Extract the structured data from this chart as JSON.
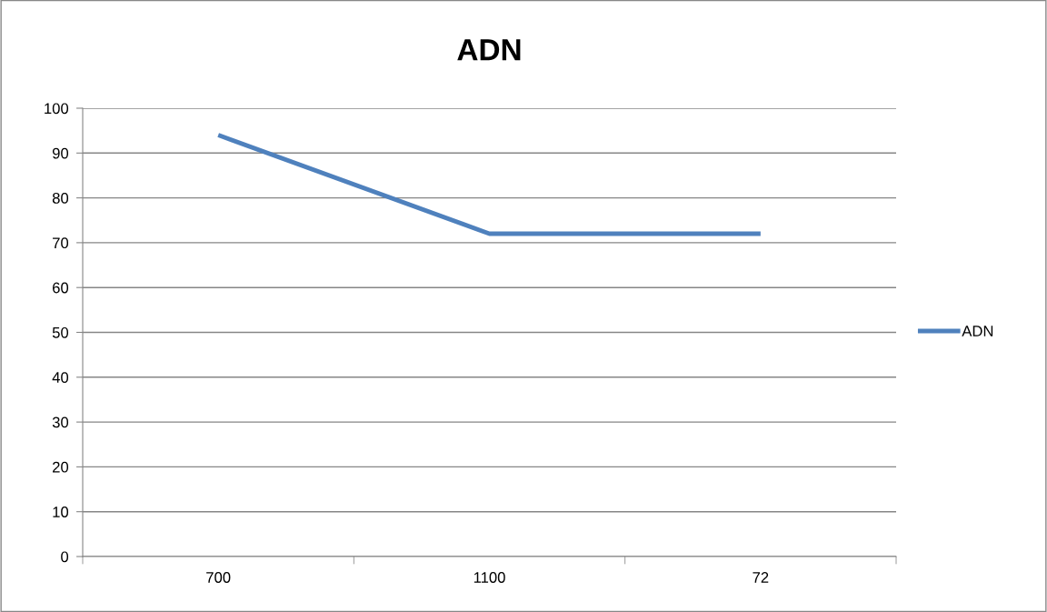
{
  "chart_data": {
    "type": "line",
    "title": "ADN",
    "categories": [
      "700",
      "1100",
      "72"
    ],
    "series": [
      {
        "name": "ADN",
        "color": "#4f81bd",
        "values": [
          94,
          72,
          72
        ]
      }
    ],
    "ylim": [
      0,
      100
    ],
    "yticks": [
      0,
      10,
      20,
      30,
      40,
      50,
      60,
      70,
      80,
      90,
      100
    ],
    "grid": "y",
    "legend": "right",
    "marker": "none",
    "line_style": "solid"
  }
}
